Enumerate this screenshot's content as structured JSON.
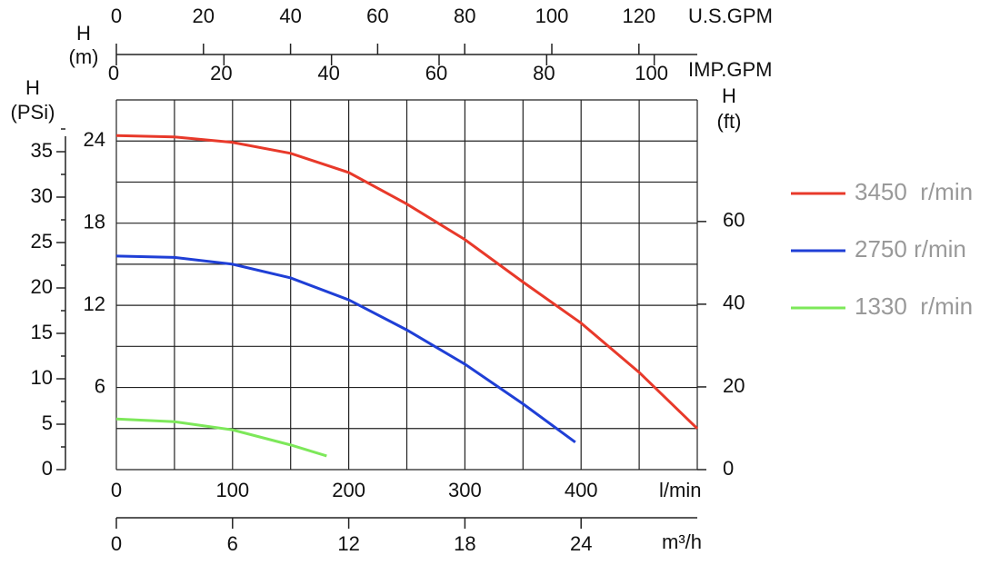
{
  "chart_data": {
    "type": "line",
    "xlabel": "l/min",
    "xlim": [
      0,
      500
    ],
    "xticks": [
      0,
      100,
      200,
      300,
      400
    ],
    "xgrid": [
      0,
      50,
      100,
      150,
      200,
      250,
      300,
      350,
      400,
      450,
      500
    ],
    "ylabel_lines": [
      "H",
      "(m)"
    ],
    "ylim": [
      0,
      27
    ],
    "yticks": [
      6,
      12,
      18,
      24
    ],
    "ygrid": [
      0,
      3,
      6,
      9,
      12,
      15,
      18,
      21,
      24,
      27
    ],
    "psi_axis": {
      "label_lines": [
        "H",
        "(PSi)"
      ],
      "lim": [
        0,
        40.7
      ],
      "ticks": [
        0,
        5,
        10,
        15,
        20,
        25,
        30,
        35
      ],
      "minor_ticks": [
        2.5,
        7.5,
        12.5,
        17.5,
        22.5,
        27.5,
        32.5,
        37.5
      ]
    },
    "ft_axis": {
      "label_lines": [
        "H",
        "(ft)"
      ],
      "lim": [
        0,
        89.4
      ],
      "ticks": [
        0,
        20,
        40,
        60
      ]
    },
    "us_gpm_axis": {
      "label": "U.S.GPM",
      "lim": [
        0,
        133.4
      ],
      "ticks": [
        0,
        20,
        40,
        60,
        80,
        100,
        120
      ]
    },
    "imp_gpm_axis": {
      "label": "IMP.GPM",
      "lim": [
        0,
        108
      ],
      "ticks": [
        0,
        20,
        40,
        60,
        80,
        100
      ]
    },
    "m3h_axis": {
      "label": "m³/h",
      "lim": [
        0,
        30
      ],
      "ticks": [
        0,
        6,
        12,
        18,
        24
      ]
    },
    "series": [
      {
        "name": "3450  r/min",
        "color": "#e8392a",
        "x": [
          0,
          50,
          100,
          150,
          200,
          250,
          300,
          350,
          400,
          450,
          500
        ],
        "values": [
          24.4,
          24.3,
          23.9,
          23.1,
          21.7,
          19.4,
          16.8,
          13.7,
          10.7,
          7.1,
          3.0
        ]
      },
      {
        "name": "2750 r/min",
        "color": "#1f3fd6",
        "x": [
          0,
          50,
          100,
          150,
          200,
          250,
          300,
          350,
          395
        ],
        "values": [
          15.6,
          15.5,
          15.0,
          14.0,
          12.4,
          10.2,
          7.7,
          4.8,
          2.0
        ]
      },
      {
        "name": "1330  r/min",
        "color": "#7de85a",
        "x": [
          0,
          50,
          100,
          150,
          181
        ],
        "values": [
          3.7,
          3.5,
          2.9,
          1.8,
          1.0
        ]
      }
    ]
  }
}
